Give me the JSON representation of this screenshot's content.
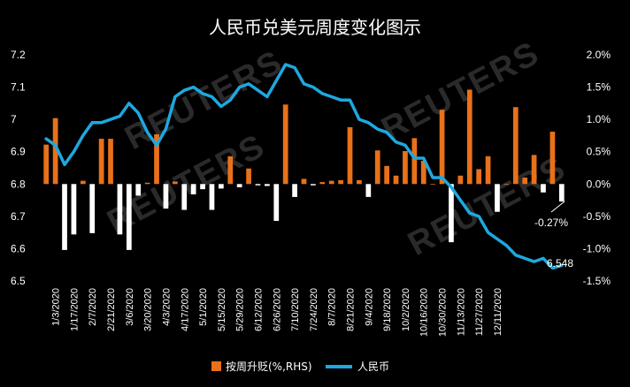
{
  "chart_data": {
    "type": "bar+line",
    "title": "人民币兑美元周度变化图示",
    "watermark": "REUTERS",
    "y_left": {
      "min": 6.5,
      "max": 7.2,
      "ticks": [
        "7.2",
        "7.1",
        "7",
        "6.9",
        "6.8",
        "6.7",
        "6.6",
        "6.5"
      ]
    },
    "y_right": {
      "min": -1.5,
      "max": 2.0,
      "ticks": [
        "2.0%",
        "1.5%",
        "1.0%",
        "0.5%",
        "0.0%",
        "-0.5%",
        "-1.0%",
        "-1.5%"
      ]
    },
    "x_tick_labels": [
      "1/3/2020",
      "1/17/2020",
      "2/7/2020",
      "2/21/2020",
      "3/6/2020",
      "3/20/2020",
      "4/3/2020",
      "4/17/2020",
      "5/1/2020",
      "5/15/2020",
      "5/29/2020",
      "6/12/2020",
      "6/26/2020",
      "7/10/2020",
      "7/24/2020",
      "8/7/2020",
      "8/21/2020",
      "9/4/2020",
      "9/18/2020",
      "10/2/2020",
      "10/16/2020",
      "10/30/2020",
      "11/13/2020",
      "11/27/2020",
      "12/11/2020"
    ],
    "series": [
      {
        "name": "按周升贬(%,RHS)",
        "color": "#E8711A",
        "axis": "right",
        "values": [
          0.61,
          1.02,
          -1.02,
          -0.78,
          0.05,
          -0.76,
          0.7,
          0.7,
          -0.78,
          -1.02,
          -0.18,
          0.02,
          0.77,
          -0.38,
          0.04,
          -0.4,
          -0.16,
          -0.08,
          -0.4,
          -0.07,
          0.43,
          -0.05,
          0.24,
          -0.02,
          -0.03,
          -0.57,
          1.23,
          -0.2,
          0.08,
          -0.02,
          0.03,
          0.05,
          0.06,
          0.88,
          0.06,
          -0.2,
          0.52,
          0.28,
          0.13,
          0.51,
          0.71,
          0.36,
          0.0,
          1.15,
          -0.9,
          0.13,
          1.46,
          0.23,
          0.43,
          -0.43,
          0.0,
          1.19,
          0.1,
          0.45,
          -0.13,
          0.81,
          -0.27
        ]
      },
      {
        "name": "人民币",
        "color": "#1EA8E0",
        "axis": "left",
        "values": [
          6.94,
          6.92,
          6.86,
          6.9,
          6.95,
          6.99,
          6.99,
          7.0,
          7.01,
          7.05,
          7.02,
          6.96,
          6.92,
          6.97,
          7.07,
          7.09,
          7.1,
          7.08,
          7.07,
          7.04,
          7.06,
          7.1,
          7.11,
          7.09,
          7.07,
          7.12,
          7.17,
          7.16,
          7.11,
          7.1,
          7.08,
          7.07,
          7.06,
          7.06,
          7.0,
          6.99,
          6.97,
          6.96,
          6.93,
          6.92,
          6.88,
          6.88,
          6.82,
          6.82,
          6.79,
          6.75,
          6.71,
          6.7,
          6.65,
          6.63,
          6.61,
          6.58,
          6.57,
          6.56,
          6.57,
          6.54,
          6.548
        ]
      }
    ],
    "annotations": {
      "last_bar_label": "-0.27%",
      "last_line_label": "6.548"
    },
    "legend": {
      "position": "bottom"
    }
  }
}
